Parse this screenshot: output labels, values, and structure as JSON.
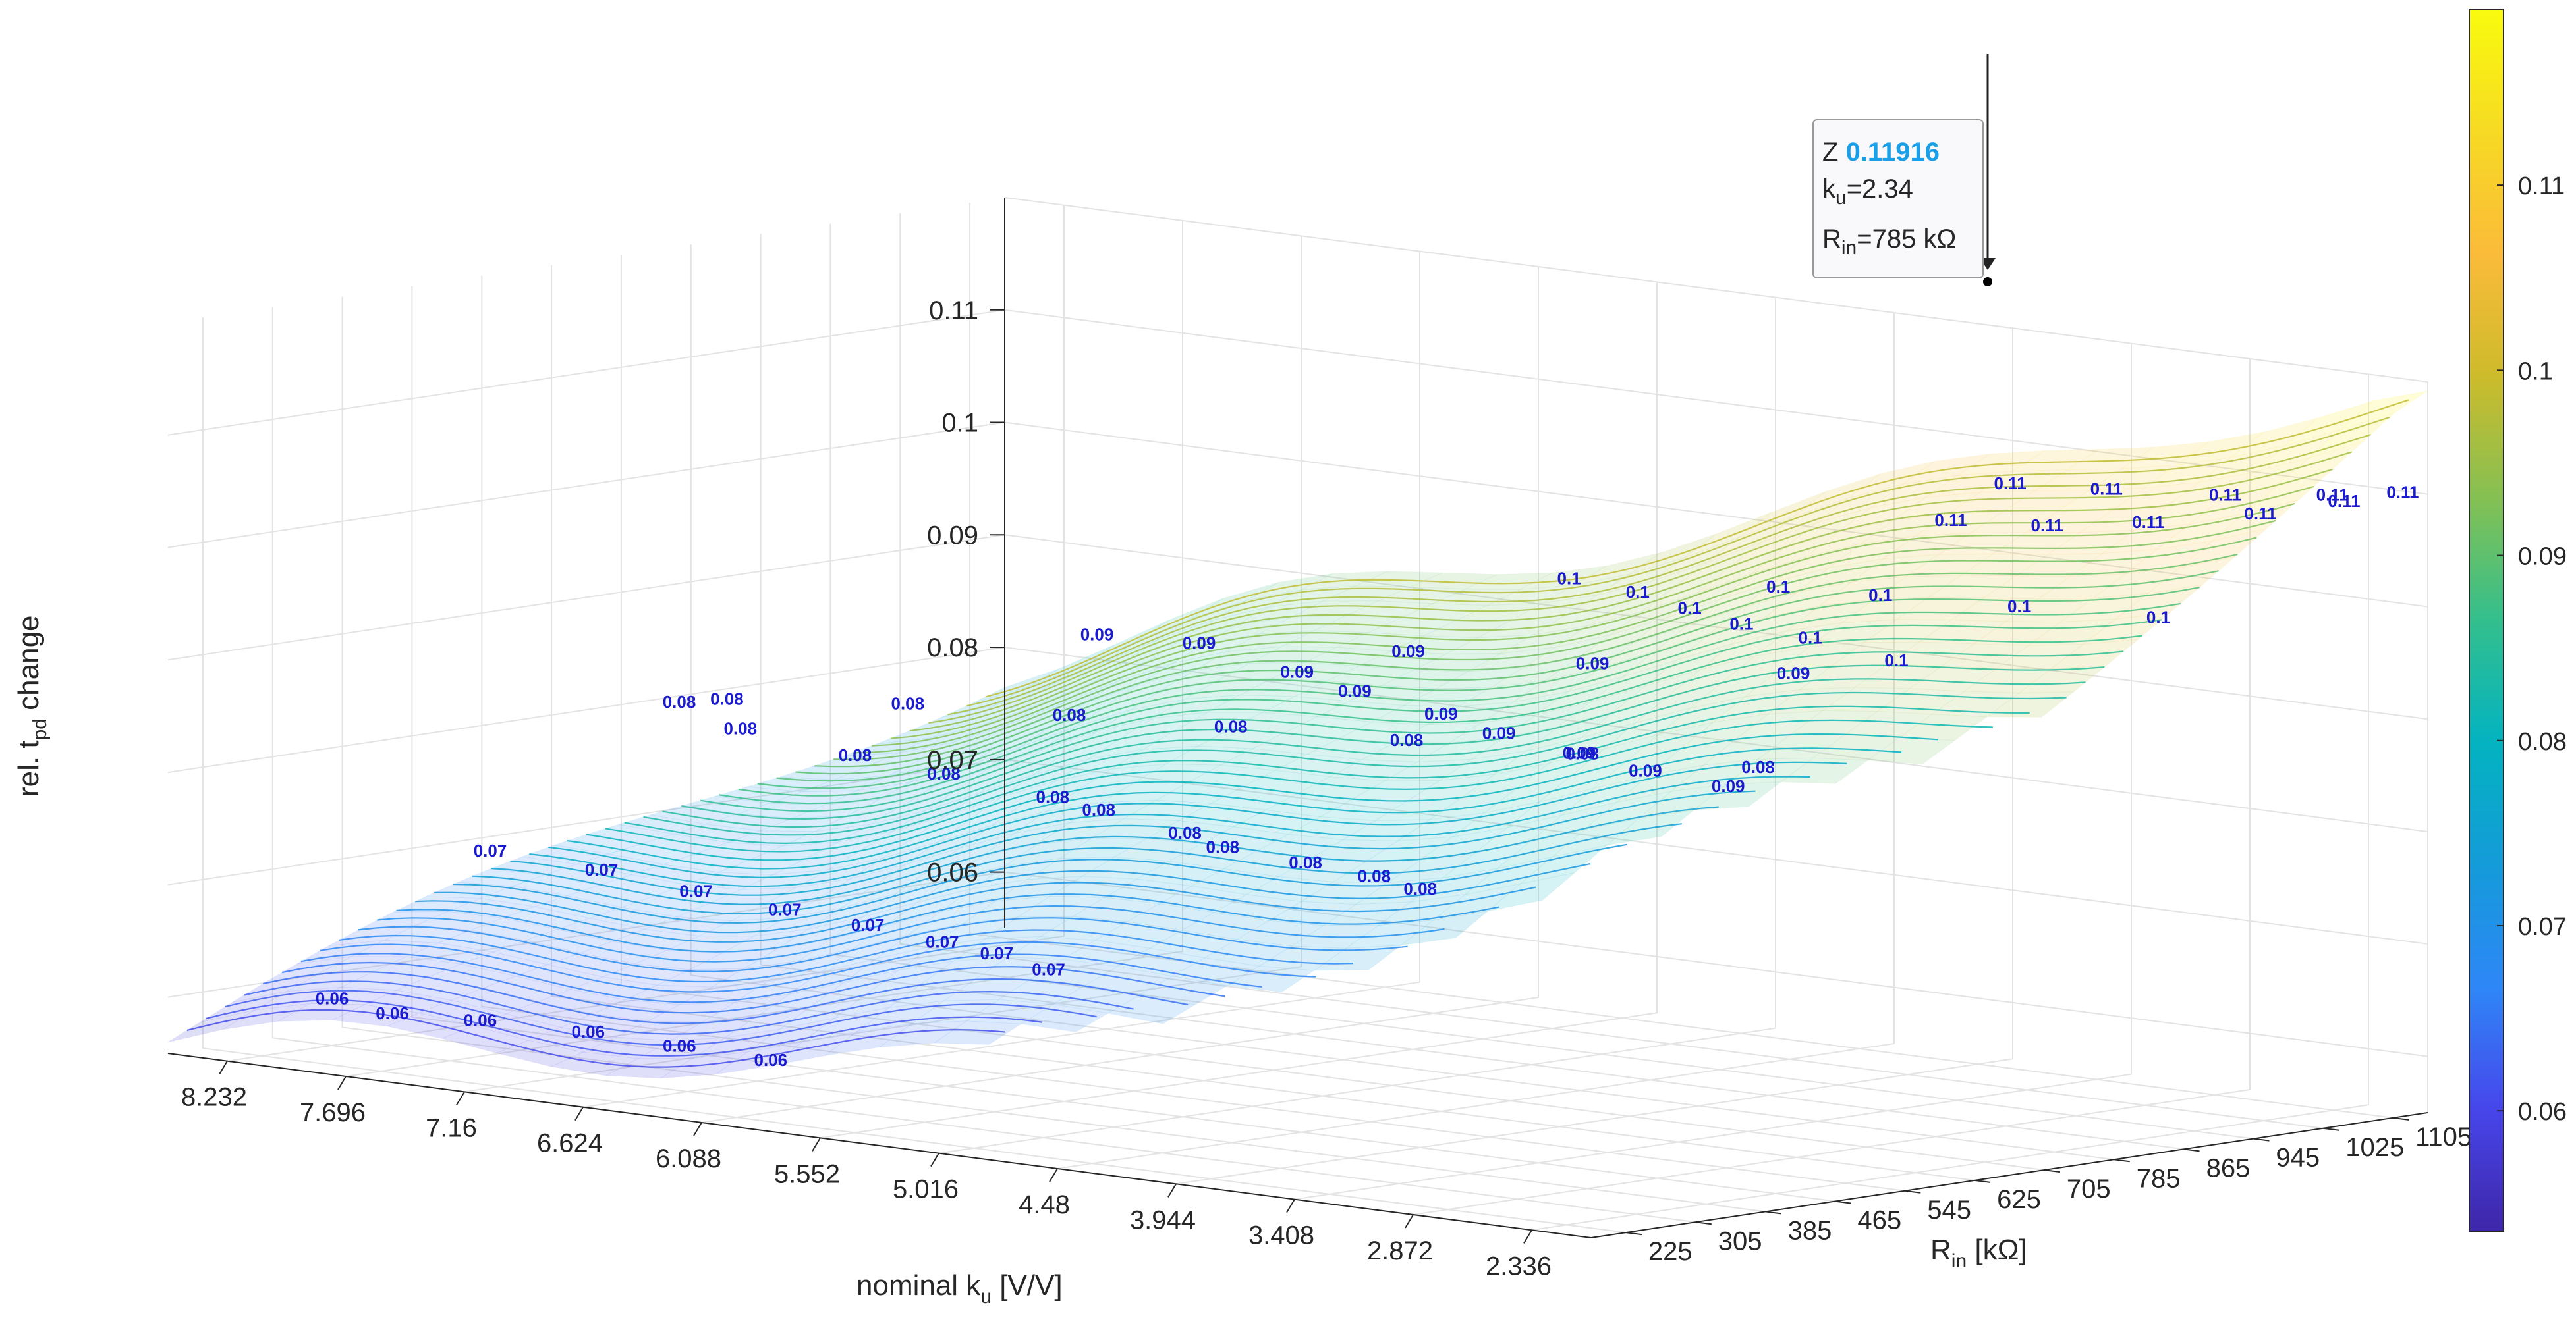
{
  "chart_data": {
    "type": "surface3d",
    "title": "",
    "xlabel": {
      "main": "nominal k",
      "sub": "u",
      "unit": " [V/V]"
    },
    "ylabel": {
      "main": "R",
      "sub": "in",
      "unit": " [kΩ]"
    },
    "zlabel": {
      "pre": "rel. t",
      "sub": "pd",
      "post": " change"
    },
    "x_ticks": [
      "8.232",
      "7.696",
      "7.16",
      "6.624",
      "6.088",
      "5.552",
      "5.016",
      "4.48",
      "3.944",
      "3.408",
      "2.872",
      "2.336"
    ],
    "y_ticks": [
      "225",
      "305",
      "385",
      "465",
      "545",
      "625",
      "705",
      "785",
      "865",
      "945",
      "1025",
      "1105"
    ],
    "z_ticks": [
      "0.06",
      "0.07",
      "0.08",
      "0.09",
      "0.1",
      "0.11"
    ],
    "zlim": [
      0.055,
      0.12
    ],
    "colorbar": {
      "ticks": [
        "0.06",
        "0.07",
        "0.08",
        "0.09",
        "0.1",
        "0.11"
      ],
      "range": [
        0.0535,
        0.1195
      ],
      "colors": [
        "#3e26a8",
        "#4746eb",
        "#2e87f7",
        "#149bd9",
        "#03b3c0",
        "#33bf8d",
        "#85c053",
        "#cdbb2b",
        "#fbbb3a",
        "#f6da23",
        "#f9fb0e"
      ]
    },
    "contour_labels": [
      {
        "text": "0.06",
        "nk": 0.08,
        "nr": 0.06
      },
      {
        "text": "0.06",
        "nk": 0.14,
        "nr": 0.03
      },
      {
        "text": "0.06",
        "nk": 0.19,
        "nr": 0.05
      },
      {
        "text": "0.06",
        "nk": 0.26,
        "nr": 0.06
      },
      {
        "text": "0.06",
        "nk": 0.33,
        "nr": 0.05
      },
      {
        "text": "0.06",
        "nk": 0.4,
        "nr": 0.04
      },
      {
        "text": "0.07",
        "nk": 0.05,
        "nr": 0.3
      },
      {
        "text": "0.07",
        "nk": 0.14,
        "nr": 0.28
      },
      {
        "text": "0.07",
        "nk": 0.23,
        "nr": 0.24
      },
      {
        "text": "0.07",
        "nk": 0.31,
        "nr": 0.21
      },
      {
        "text": "0.07",
        "nk": 0.38,
        "nr": 0.19
      },
      {
        "text": "0.07",
        "nk": 0.45,
        "nr": 0.16
      },
      {
        "text": "0.07",
        "nk": 0.5,
        "nr": 0.14
      },
      {
        "text": "0.07",
        "nk": 0.56,
        "nr": 0.1
      },
      {
        "text": "0.08",
        "nk": 0.03,
        "nr": 0.56
      },
      {
        "text": "0.08",
        "nk": 0.04,
        "nr": 0.6
      },
      {
        "text": "0.08",
        "nk": 0.12,
        "nr": 0.48
      },
      {
        "text": "0.08",
        "nk": 0.23,
        "nr": 0.43
      },
      {
        "text": "0.08",
        "nk": 0.31,
        "nr": 0.4
      },
      {
        "text": "0.08",
        "nk": 0.41,
        "nr": 0.36
      },
      {
        "text": "0.08",
        "nk": 0.46,
        "nr": 0.33
      },
      {
        "text": "0.08",
        "nk": 0.55,
        "nr": 0.28
      },
      {
        "text": "0.08",
        "nk": 0.6,
        "nr": 0.24
      },
      {
        "text": "0.08",
        "nk": 0.67,
        "nr": 0.22
      },
      {
        "text": "0.08",
        "nk": 0.73,
        "nr": 0.2
      },
      {
        "text": "0.08",
        "nk": 0.78,
        "nr": 0.17
      },
      {
        "text": "0.08",
        "nk": 0.12,
        "nr": 0.68
      },
      {
        "text": "0.08",
        "nk": 0.21,
        "nr": 0.72
      },
      {
        "text": "0.08",
        "nk": 0.3,
        "nr": 0.76
      },
      {
        "text": "0.08",
        "nk": 0.4,
        "nr": 0.8
      },
      {
        "text": "0.08",
        "nk": 0.5,
        "nr": 0.84
      },
      {
        "text": "0.08",
        "nk": 0.6,
        "nr": 0.88
      },
      {
        "text": "0.09",
        "nk": 0.3,
        "nr": 0.6
      },
      {
        "text": "0.09",
        "nk": 0.36,
        "nr": 0.62
      },
      {
        "text": "0.09",
        "nk": 0.47,
        "nr": 0.55
      },
      {
        "text": "0.09",
        "nk": 0.54,
        "nr": 0.5
      },
      {
        "text": "0.09",
        "nk": 0.63,
        "nr": 0.45
      },
      {
        "text": "0.09",
        "nk": 0.7,
        "nr": 0.4
      },
      {
        "text": "0.09",
        "nk": 0.78,
        "nr": 0.36
      },
      {
        "text": "0.09",
        "nk": 0.85,
        "nr": 0.32
      },
      {
        "text": "0.09",
        "nk": 0.92,
        "nr": 0.3
      },
      {
        "text": "0.09",
        "nk": 0.46,
        "nr": 0.7
      },
      {
        "text": "0.09",
        "nk": 0.56,
        "nr": 0.75
      },
      {
        "text": "0.09",
        "nk": 0.66,
        "nr": 0.82
      },
      {
        "text": "0.1",
        "nk": 0.62,
        "nr": 0.62
      },
      {
        "text": "0.1",
        "nk": 0.68,
        "nr": 0.6
      },
      {
        "text": "0.1",
        "nk": 0.74,
        "nr": 0.56
      },
      {
        "text": "0.1",
        "nk": 0.8,
        "nr": 0.52
      },
      {
        "text": "0.1",
        "nk": 0.86,
        "nr": 0.5
      },
      {
        "text": "0.1",
        "nk": 0.95,
        "nr": 0.45
      },
      {
        "text": "0.1",
        "nk": 0.72,
        "nr": 0.7
      },
      {
        "text": "0.1",
        "nk": 0.78,
        "nr": 0.72
      },
      {
        "text": "0.1",
        "nk": 0.86,
        "nr": 0.75
      },
      {
        "text": "0.1",
        "nk": 0.94,
        "nr": 0.78
      },
      {
        "text": "0.11",
        "nk": 0.9,
        "nr": 0.6
      },
      {
        "text": "0.11",
        "nk": 0.95,
        "nr": 0.63
      },
      {
        "text": "0.11",
        "nk": 0.98,
        "nr": 0.7
      },
      {
        "text": "0.11",
        "nk": 1.0,
        "nr": 0.8
      },
      {
        "text": "0.11",
        "nk": 1.0,
        "nr": 0.9
      },
      {
        "text": "0.11",
        "nk": 1.0,
        "nr": 0.97
      },
      {
        "text": "0.11",
        "nk": 0.94,
        "nr": 0.86
      },
      {
        "text": "0.11",
        "nk": 0.88,
        "nr": 0.82
      },
      {
        "text": "0.11",
        "nk": 0.83,
        "nr": 0.79
      },
      {
        "text": "0.11",
        "nk": 0.98,
        "nr": 0.92
      }
    ],
    "datatip": {
      "z_label": "Z",
      "z_value": "0.11916",
      "line2_pre": "k",
      "line2_sub": "u",
      "line2_post": "=2.34",
      "line3_pre": "R",
      "line3_sub": "in",
      "line3_post": "=785 kΩ",
      "nk": 1.0,
      "nr": 0.7,
      "z": 0.11916
    }
  }
}
